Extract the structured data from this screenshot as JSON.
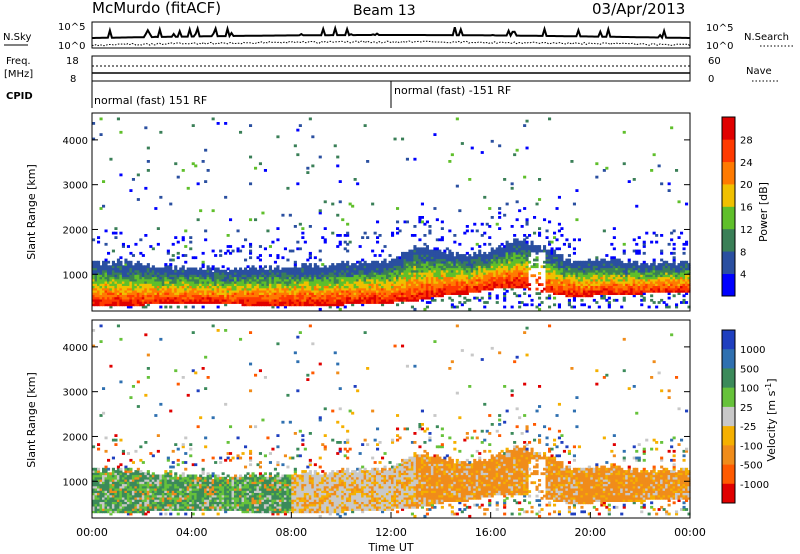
{
  "header": {
    "station": "McMurdo (fitACF)",
    "beam": "Beam 13",
    "date": "03/Apr/2013"
  },
  "noise_panel": {
    "left_label": "N.Sky",
    "left_ticks": [
      "10^5",
      "10^0"
    ],
    "right_ticks": [
      "10^5",
      "10^0"
    ],
    "right_label": "N.Search"
  },
  "freq_panel": {
    "left_label_1": "Freq.",
    "left_label_2": "[MHz]",
    "left_ticks": [
      "18",
      "8"
    ],
    "right_ticks": [
      "60",
      "0"
    ],
    "right_label": "Nave"
  },
  "cpid": {
    "label": "CPID",
    "segments": [
      {
        "text": "normal (fast) 151 RF",
        "start_hour": 0
      },
      {
        "text": "normal (fast) -151 RF",
        "start_hour": 12
      }
    ]
  },
  "chart_data": [
    {
      "type": "heatmap",
      "parameter": "Power",
      "ylabel": "Slant Range [km]",
      "xlabel": "",
      "xlim_hours": [
        0,
        24
      ],
      "ylim_km": [
        180,
        4600
      ],
      "y_ticks": [
        1000,
        2000,
        3000,
        4000
      ],
      "colorbar_label": "Power [dB]",
      "colorbar_ticks": [
        "4",
        "8",
        "12",
        "16",
        "20",
        "24",
        "28"
      ],
      "colorbar_colors": [
        "#0000ff",
        "#2a4fa0",
        "#3a7f57",
        "#5fbf2a",
        "#f0c000",
        "#ff7a00",
        "#ff3a00",
        "#e00000"
      ],
      "echo_band": {
        "times_hours": [
          0,
          2,
          4,
          6,
          8,
          10,
          12,
          13,
          14,
          15,
          16,
          17,
          18,
          19,
          20,
          22,
          24
        ],
        "lower_km": [
          300,
          300,
          350,
          300,
          300,
          300,
          350,
          400,
          500,
          550,
          650,
          700,
          600,
          500,
          500,
          550,
          600
        ],
        "upper_km": [
          1250,
          1200,
          1100,
          1100,
          1150,
          1200,
          1300,
          1600,
          1500,
          1400,
          1500,
          1800,
          1600,
          1300,
          1300,
          1250,
          1250
        ]
      }
    },
    {
      "type": "heatmap",
      "parameter": "Velocity",
      "ylabel": "Slant Range [km]",
      "xlabel": "Time UT",
      "xlim_hours": [
        0,
        24
      ],
      "ylim_km": [
        180,
        4600
      ],
      "y_ticks": [
        1000,
        2000,
        3000,
        4000
      ],
      "x_ticks": [
        "00:00",
        "04:00",
        "08:00",
        "12:00",
        "16:00",
        "20:00",
        "00:00"
      ],
      "colorbar_label": "Velocity [m s^-1]",
      "colorbar_ticks": [
        "1000",
        "500",
        "100",
        "25",
        "-25",
        "-100",
        "-500",
        "-1000"
      ],
      "colorbar_colors": [
        "#1f3fbf",
        "#2f70b0",
        "#3b8a5a",
        "#66c23a",
        "#c8c8c8",
        "#f5b000",
        "#f08c1a",
        "#ff5a00",
        "#e00000"
      ],
      "regions": [
        {
          "hours": [
            0,
            8
          ],
          "dominant": "positive (green)"
        },
        {
          "hours": [
            8,
            13
          ],
          "dominant": "near zero (grey)"
        },
        {
          "hours": [
            13,
            24
          ],
          "dominant": "negative (orange)"
        }
      ]
    }
  ]
}
